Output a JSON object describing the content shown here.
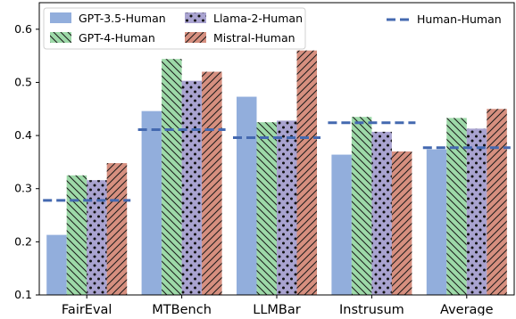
{
  "colors": {
    "gpt35": "#92aedc",
    "gpt4": "#9dd9a8",
    "llama2": "#a9a3d0",
    "mistral": "#d68f7f",
    "reference": "#4469b0"
  },
  "chart_data": {
    "type": "bar",
    "title": "",
    "xlabel": "",
    "ylabel": "",
    "categories": [
      "FairEval",
      "MTBench",
      "LLMBar",
      "Instrusum",
      "Average"
    ],
    "ylim": [
      0.1,
      0.65
    ],
    "yticks": [
      "0.1",
      "0.2",
      "0.3",
      "0.4",
      "0.5",
      "0.6"
    ],
    "grid": false,
    "legend_placement": "top",
    "series": [
      {
        "name": "GPT-3.5-Human",
        "values": [
          0.213,
          0.446,
          0.473,
          0.364,
          0.374
        ],
        "hatch": "none",
        "color_key": "gpt35"
      },
      {
        "name": "GPT-4-Human",
        "values": [
          0.325,
          0.544,
          0.425,
          0.435,
          0.433
        ],
        "hatch": "backslash",
        "color_key": "gpt4"
      },
      {
        "name": "Llama-2-Human",
        "values": [
          0.316,
          0.503,
          0.428,
          0.407,
          0.413
        ],
        "hatch": "dots",
        "color_key": "llama2"
      },
      {
        "name": "Mistral-Human",
        "values": [
          0.348,
          0.52,
          0.56,
          0.37,
          0.45
        ],
        "hatch": "slash",
        "color_key": "mistral"
      }
    ],
    "reference": {
      "name": "Human-Human",
      "values": [
        0.278,
        0.411,
        0.396,
        0.424,
        0.377
      ]
    }
  }
}
